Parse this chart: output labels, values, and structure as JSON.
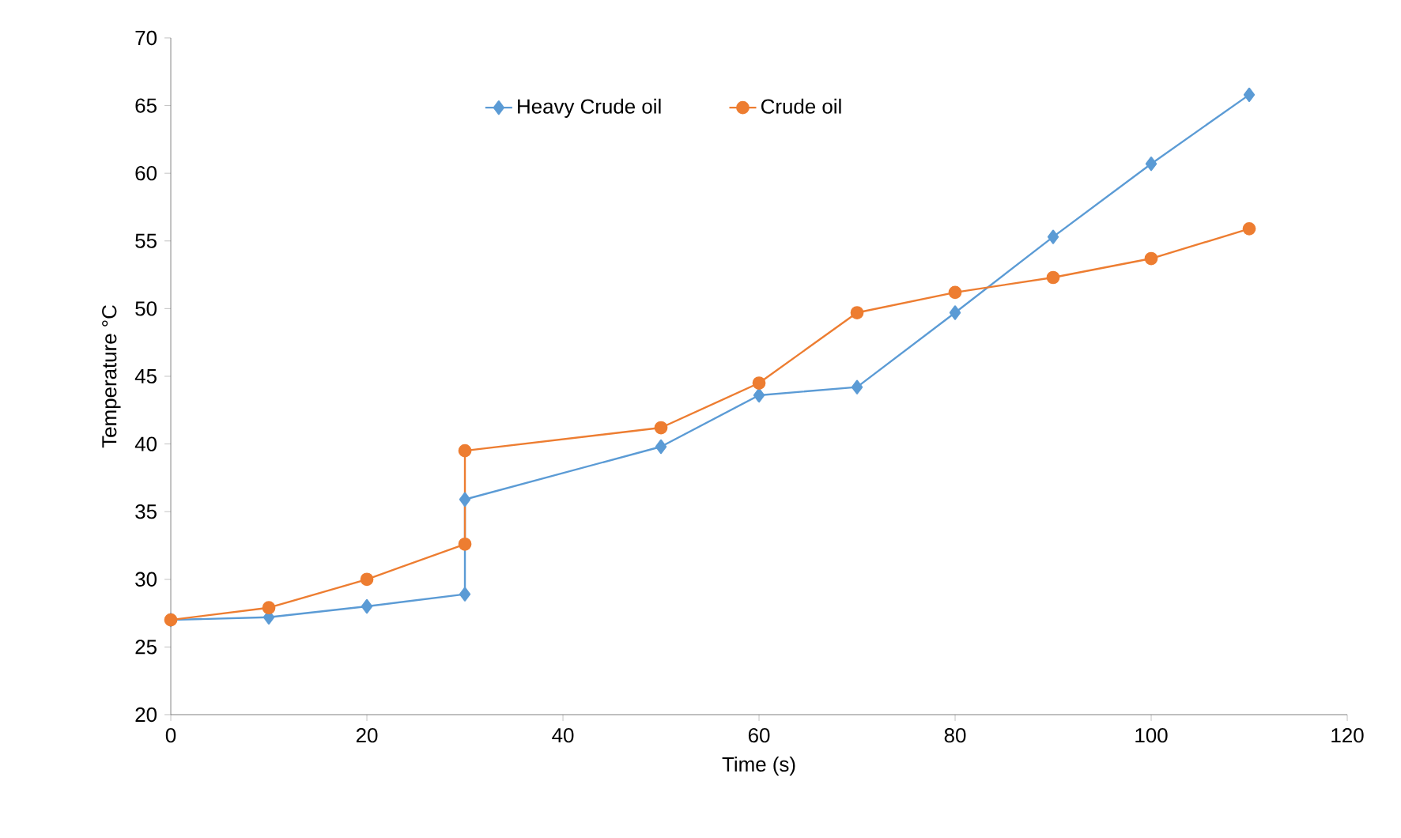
{
  "chart_data": {
    "type": "line",
    "xlabel": "Time (s)",
    "ylabel": "Temperature °C",
    "xlim": [
      0,
      120
    ],
    "xticks": [
      0,
      20,
      40,
      60,
      80,
      100,
      120
    ],
    "ylim": [
      20,
      70
    ],
    "yticks": [
      20,
      25,
      30,
      35,
      40,
      45,
      50,
      55,
      60,
      65,
      70
    ],
    "grid": false,
    "legend": "top",
    "series": [
      {
        "name": "Heavy Crude oil",
        "color": "#5b9bd5",
        "marker": "diamond",
        "x": [
          0,
          10,
          20,
          30,
          30,
          50,
          60,
          70,
          80,
          90,
          100,
          110
        ],
        "values": [
          27,
          27.2,
          28,
          28.9,
          35.9,
          39.8,
          43.6,
          44.2,
          49.7,
          55.3,
          60.7,
          65.8
        ]
      },
      {
        "name": "Crude oil",
        "color": "#ed7d31",
        "marker": "circle",
        "x": [
          0,
          10,
          20,
          30,
          30,
          50,
          60,
          70,
          80,
          90,
          100,
          110
        ],
        "values": [
          27,
          27.9,
          30,
          32.6,
          39.5,
          41.2,
          44.5,
          49.7,
          51.2,
          52.3,
          53.7,
          55.9
        ]
      }
    ]
  }
}
